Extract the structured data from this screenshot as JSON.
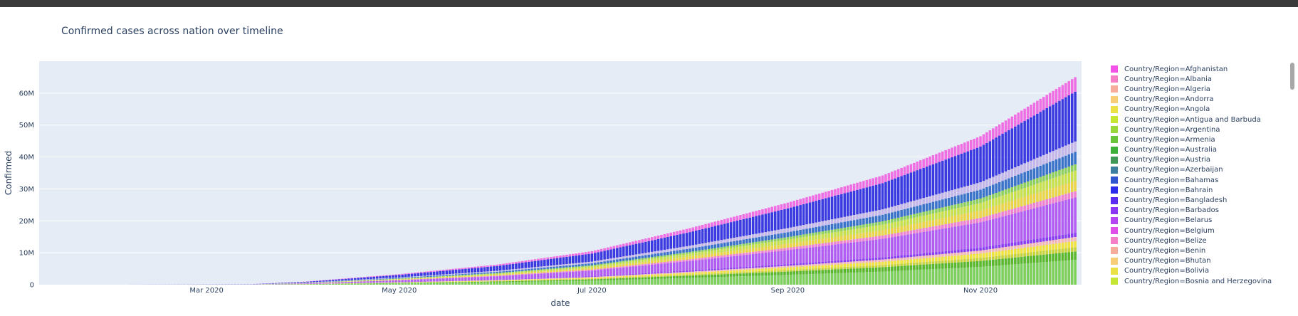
{
  "chart_data": {
    "type": "bar",
    "barmode": "stack",
    "title": "Confirmed cases across nation over timeline",
    "xlabel": "date",
    "ylabel": "Confirmed",
    "x_ticks": [
      "Mar 2020",
      "May 2020",
      "Jul 2020",
      "Sep 2020",
      "Nov 2020"
    ],
    "y_ticks": [
      "0",
      "10M",
      "20M",
      "30M",
      "40M",
      "50M",
      "60M"
    ],
    "ylim": [
      0,
      70000000
    ],
    "x_range": [
      "2020-01-08",
      "2020-12-03"
    ],
    "legend_position": "right",
    "grid": true,
    "plot_bgcolor": "#E5ECF6",
    "total_series": [
      {
        "date": "2020-01-22",
        "value": 0
      },
      {
        "date": "2020-03-15",
        "value": 170000
      },
      {
        "date": "2020-04-01",
        "value": 950000
      },
      {
        "date": "2020-05-01",
        "value": 3300000
      },
      {
        "date": "2020-06-01",
        "value": 6300000
      },
      {
        "date": "2020-07-01",
        "value": 10500000
      },
      {
        "date": "2020-08-01",
        "value": 17700000
      },
      {
        "date": "2020-09-01",
        "value": 25700000
      },
      {
        "date": "2020-10-01",
        "value": 34200000
      },
      {
        "date": "2020-11-01",
        "value": 46500000
      },
      {
        "date": "2020-12-01",
        "value": 65000000
      }
    ],
    "layer_fractions": [
      {
        "color": "#7fd05a",
        "from": 0.0,
        "to": 0.12
      },
      {
        "color": "#5bb82a",
        "from": 0.12,
        "to": 0.16
      },
      {
        "color": "#c8d33a",
        "from": 0.16,
        "to": 0.18
      },
      {
        "color": "#f0e340",
        "from": 0.18,
        "to": 0.21
      },
      {
        "color": "#f5b7b3",
        "from": 0.21,
        "to": 0.23
      },
      {
        "color": "#8a3df0",
        "from": 0.23,
        "to": 0.25
      },
      {
        "color": "#b25cf2",
        "from": 0.25,
        "to": 0.42
      },
      {
        "color": "#f080d0",
        "from": 0.42,
        "to": 0.45
      },
      {
        "color": "#ead547",
        "from": 0.45,
        "to": 0.5
      },
      {
        "color": "#c8e04a",
        "from": 0.5,
        "to": 0.55
      },
      {
        "color": "#8ed05a",
        "from": 0.55,
        "to": 0.58
      },
      {
        "color": "#3b73c9",
        "from": 0.58,
        "to": 0.64
      },
      {
        "color": "#c4b6e8",
        "from": 0.64,
        "to": 0.69
      },
      {
        "color": "#3a3ae0",
        "from": 0.69,
        "to": 0.93
      },
      {
        "color": "#ef6fe3",
        "from": 0.93,
        "to": 1.0
      }
    ],
    "legend": [
      {
        "label": "Country/Region=Afghanistan",
        "color": "#f252e8"
      },
      {
        "label": "Country/Region=Albania",
        "color": "#f57fc6"
      },
      {
        "label": "Country/Region=Algeria",
        "color": "#f7ad9c"
      },
      {
        "label": "Country/Region=Andorra",
        "color": "#f8cd78"
      },
      {
        "label": "Country/Region=Angola",
        "color": "#eae144"
      },
      {
        "label": "Country/Region=Antigua and Barbuda",
        "color": "#c6e634"
      },
      {
        "label": "Country/Region=Argentina",
        "color": "#99d73a"
      },
      {
        "label": "Country/Region=Armenia",
        "color": "#6ac43a"
      },
      {
        "label": "Country/Region=Australia",
        "color": "#3db03a"
      },
      {
        "label": "Country/Region=Austria",
        "color": "#3f9a58"
      },
      {
        "label": "Country/Region=Azerbaijan",
        "color": "#3d7fa0"
      },
      {
        "label": "Country/Region=Bahamas",
        "color": "#2f55cf"
      },
      {
        "label": "Country/Region=Bahrain",
        "color": "#2b2bec"
      },
      {
        "label": "Country/Region=Bangladesh",
        "color": "#5b2cf0"
      },
      {
        "label": "Country/Region=Barbados",
        "color": "#8a36f2"
      },
      {
        "label": "Country/Region=Belarus",
        "color": "#b545f2"
      },
      {
        "label": "Country/Region=Belgium",
        "color": "#e04fe8"
      },
      {
        "label": "Country/Region=Belize",
        "color": "#f57fc6"
      },
      {
        "label": "Country/Region=Benin",
        "color": "#f7ad9c"
      },
      {
        "label": "Country/Region=Bhutan",
        "color": "#f8cd78"
      },
      {
        "label": "Country/Region=Bolivia",
        "color": "#eae144"
      },
      {
        "label": "Country/Region=Bosnia and Herzegovina",
        "color": "#c6e634"
      }
    ]
  }
}
